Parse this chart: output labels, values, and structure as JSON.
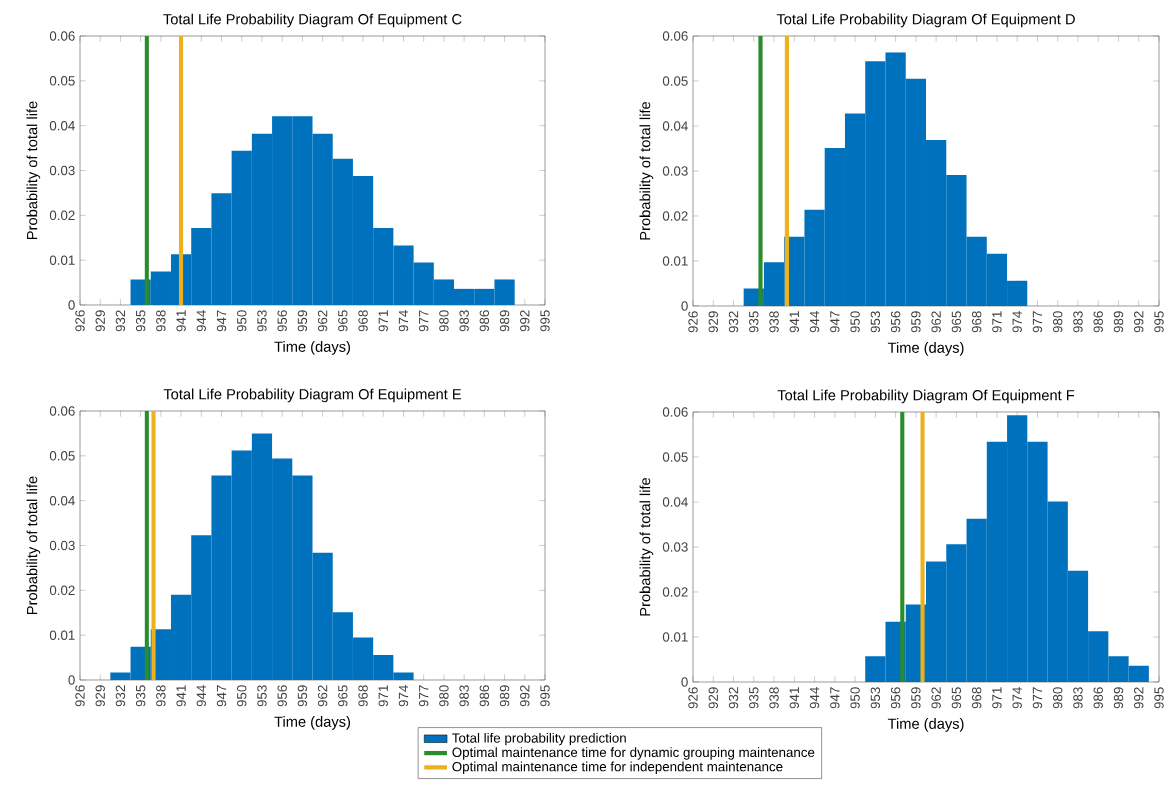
{
  "chart_data": [
    {
      "type": "histogram",
      "title": "Total Life Probability Diagram Of Equipment C",
      "xlabel": "Time (days)",
      "ylabel": "Probability of total life",
      "bins": [
        933.5,
        936.5,
        939.5,
        942.5,
        945.5,
        948.5,
        951.5,
        954.5,
        957.5,
        960.5,
        963.5,
        966.5,
        969.5,
        972.5,
        975.5,
        978.5,
        981.5,
        984.5,
        987.5,
        990.5
      ],
      "series": [
        {
          "name": "Total life probability prediction",
          "color": "#0072bd",
          "values": [
            0.0057,
            0.0075,
            0.0113,
            0.0172,
            0.0249,
            0.0344,
            0.0382,
            0.0421,
            0.0421,
            0.0382,
            0.0326,
            0.0288,
            0.0172,
            0.0133,
            0.0095,
            0.0057,
            0.0036,
            0.0036,
            0.0057
          ]
        }
      ],
      "xlim": [
        926,
        995
      ],
      "xticks": [
        926,
        929,
        932,
        935,
        938,
        941,
        944,
        947,
        950,
        953,
        956,
        959,
        962,
        965,
        968,
        971,
        974,
        977,
        980,
        983,
        986,
        989,
        992,
        995
      ],
      "ylim": [
        0,
        0.06
      ],
      "yticks": [
        0,
        0.01,
        0.02,
        0.03,
        0.04,
        0.05,
        0.06
      ],
      "ref_lines": [
        {
          "axis": "x",
          "value": 935.9,
          "label": "Optimal maintenance time for dynamic grouping maintenance",
          "color": "#2a8c2a"
        },
        {
          "axis": "x",
          "value": 941.0,
          "label": "Optimal maintenance time for independent maintenance",
          "color": "#edb120"
        }
      ],
      "legend": "bottom"
    },
    {
      "type": "histogram",
      "title": "Total Life Probability Diagram Of Equipment D",
      "xlabel": "Time (days)",
      "ylabel": "Probability of total life",
      "bins": [
        933.5,
        936.5,
        939.5,
        942.5,
        945.5,
        948.5,
        951.5,
        954.5,
        957.5,
        960.5,
        963.5,
        966.5,
        969.5,
        972.5,
        975.5
      ],
      "series": [
        {
          "color": "#0072bd",
          "values": [
            0.0039,
            0.0097,
            0.0154,
            0.0214,
            0.0351,
            0.0428,
            0.0544,
            0.0564,
            0.0505,
            0.0369,
            0.0291,
            0.0154,
            0.0116,
            0.0056
          ]
        }
      ],
      "xlim": [
        926,
        995
      ],
      "xticks": [
        926,
        929,
        932,
        935,
        938,
        941,
        944,
        947,
        950,
        953,
        956,
        959,
        962,
        965,
        968,
        971,
        974,
        977,
        980,
        983,
        986,
        989,
        992,
        995
      ],
      "ylim": [
        0,
        0.06
      ],
      "yticks": [
        0,
        0.01,
        0.02,
        0.03,
        0.04,
        0.05,
        0.06
      ],
      "ref_lines": [
        {
          "axis": "x",
          "value": 936.0,
          "color": "#2a8c2a"
        },
        {
          "axis": "x",
          "value": 939.9,
          "color": "#edb120"
        }
      ]
    },
    {
      "type": "histogram",
      "title": "Total Life Probability Diagram Of Equipment E",
      "xlabel": "Time (days)",
      "ylabel": "Probability of total life",
      "bins": [
        930.5,
        933.5,
        936.5,
        939.5,
        942.5,
        945.5,
        948.5,
        951.5,
        954.5,
        957.5,
        960.5,
        963.5,
        966.5,
        969.5,
        972.5,
        975.5
      ],
      "series": [
        {
          "color": "#0072bd",
          "values": [
            0.0017,
            0.0074,
            0.0113,
            0.019,
            0.0323,
            0.0456,
            0.0512,
            0.055,
            0.0494,
            0.0456,
            0.0284,
            0.0151,
            0.0095,
            0.0056,
            0.0017
          ]
        }
      ],
      "xlim": [
        926,
        995
      ],
      "xticks": [
        926,
        929,
        932,
        935,
        938,
        941,
        944,
        947,
        950,
        953,
        956,
        959,
        962,
        965,
        968,
        971,
        974,
        977,
        980,
        983,
        986,
        989,
        992,
        995
      ],
      "ylim": [
        0,
        0.06
      ],
      "yticks": [
        0,
        0.01,
        0.02,
        0.03,
        0.04,
        0.05,
        0.06
      ],
      "ref_lines": [
        {
          "axis": "x",
          "value": 935.9,
          "color": "#2a8c2a"
        },
        {
          "axis": "x",
          "value": 936.9,
          "color": "#edb120"
        }
      ]
    },
    {
      "type": "histogram",
      "title": "Total Life Probability Diagram Of Equipment F",
      "xlabel": "Time (days)",
      "ylabel": "Probability of total life",
      "bins": [
        951.5,
        954.5,
        957.5,
        960.5,
        963.5,
        966.5,
        969.5,
        972.5,
        975.5,
        978.5,
        981.5,
        984.5,
        987.5,
        990.5,
        993.5
      ],
      "series": [
        {
          "color": "#0072bd",
          "values": [
            0.0057,
            0.0134,
            0.0172,
            0.0268,
            0.0306,
            0.0363,
            0.0534,
            0.0593,
            0.0534,
            0.0401,
            0.0247,
            0.0113,
            0.0057,
            0.0036
          ]
        }
      ],
      "xlim": [
        926,
        995
      ],
      "xticks": [
        926,
        929,
        932,
        935,
        938,
        941,
        944,
        947,
        950,
        953,
        956,
        959,
        962,
        965,
        968,
        971,
        974,
        977,
        980,
        983,
        986,
        989,
        992,
        995
      ],
      "ylim": [
        0,
        0.06
      ],
      "yticks": [
        0,
        0.01,
        0.02,
        0.03,
        0.04,
        0.05,
        0.06
      ],
      "ref_lines": [
        {
          "axis": "x",
          "value": 957.0,
          "color": "#2a8c2a"
        },
        {
          "axis": "x",
          "value": 960.0,
          "color": "#edb120"
        }
      ]
    }
  ]
}
